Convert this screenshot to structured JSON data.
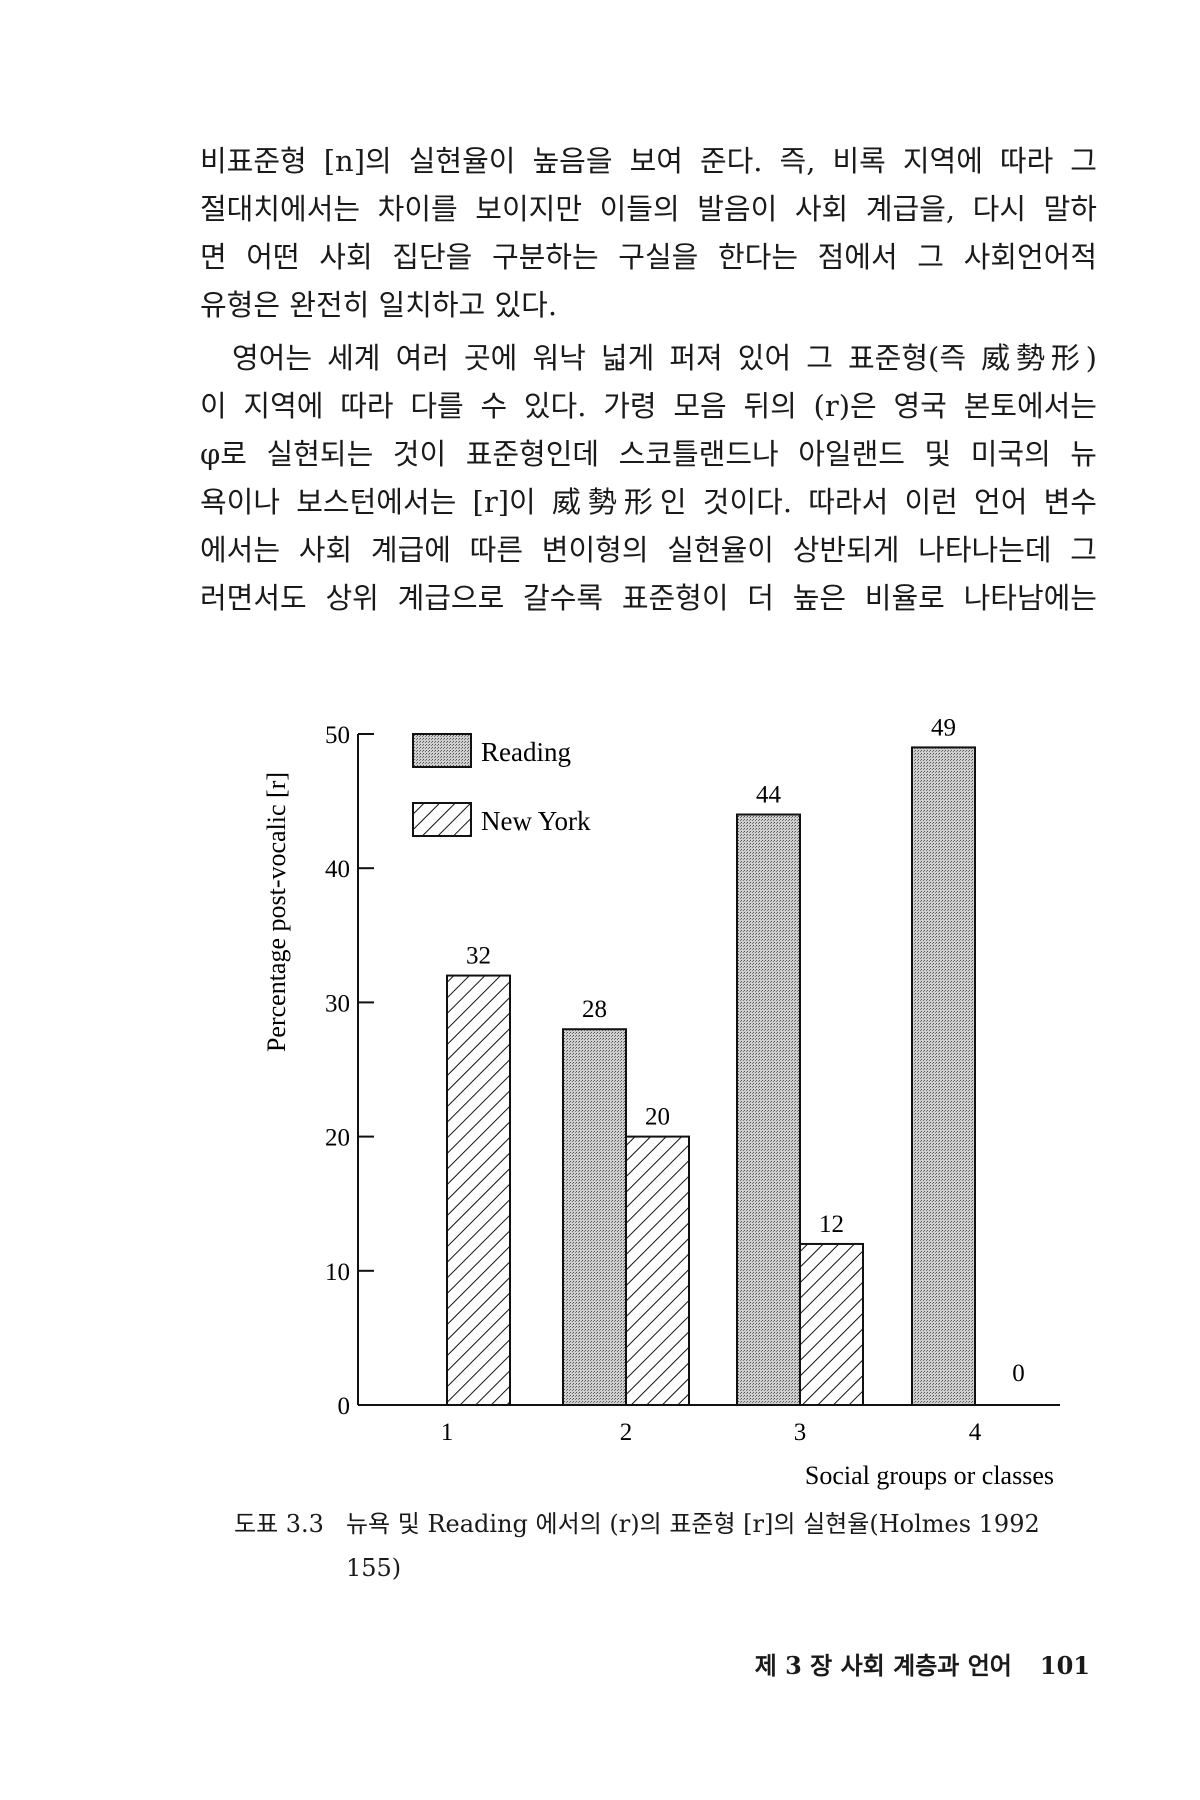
{
  "body_text": {
    "paragraph1": [
      "비표준형 [n]의 실현율이 높음을 보여 준다. 즉, 비록 지역에 따라 그",
      "절대치에서는 차이를 보이지만 이들의 발음이 사회 계급을, 다시 말하",
      "면 어떤 사회 집단을 구분하는 구실을 한다는 점에서 그 사회언어적",
      "유형은 완전히 일치하고 있다."
    ],
    "paragraph2": [
      "영어는 세계 여러 곳에 워낙 넓게 퍼져 있어 그 표준형(즉 威勢形)",
      "이 지역에 따라 다를 수 있다. 가령 모음 뒤의 (r)은 영국 본토에서는",
      "φ로 실현되는 것이 표준형인데 스코틀랜드나 아일랜드 및 미국의 뉴",
      "욕이나 보스턴에서는 [r]이 威勢形인 것이다. 따라서 이런 언어 변수",
      "에서는 사회 계급에 따른 변이형의 실현율이 상반되게 나타나는데 그",
      "러면서도 상위 계급으로 갈수록 표준형이 더 높은 비율로 나타남에는"
    ]
  },
  "chart_data": {
    "type": "bar",
    "categories": [
      "1",
      "2",
      "3",
      "4"
    ],
    "series": [
      {
        "name": "Reading",
        "values": [
          null,
          28,
          44,
          49
        ],
        "pattern": "stipple"
      },
      {
        "name": "New York",
        "values": [
          32,
          20,
          12,
          0
        ],
        "pattern": "hatch"
      }
    ],
    "data_labels": {
      "Reading": [
        "",
        "28",
        "44",
        "49"
      ],
      "New York": [
        "32",
        "20",
        "12",
        "0"
      ]
    },
    "xlabel": "Social groups or classes",
    "ylabel": "Percentage post-vocalic [r]",
    "yticks": [
      "0",
      "10",
      "20",
      "30",
      "40",
      "50"
    ],
    "ylim": [
      0,
      50
    ],
    "grid": false,
    "legend_placement": "top-left"
  },
  "caption": {
    "label": "도표 3.3",
    "text": "뉴욕 및 Reading 에서의 (r)의 표준형 [r]의 실현율(Holmes 1992",
    "text_cont": "155)"
  },
  "footer": {
    "running_head": "제 3 장  사회 계층과 언어",
    "page_number": "101"
  }
}
